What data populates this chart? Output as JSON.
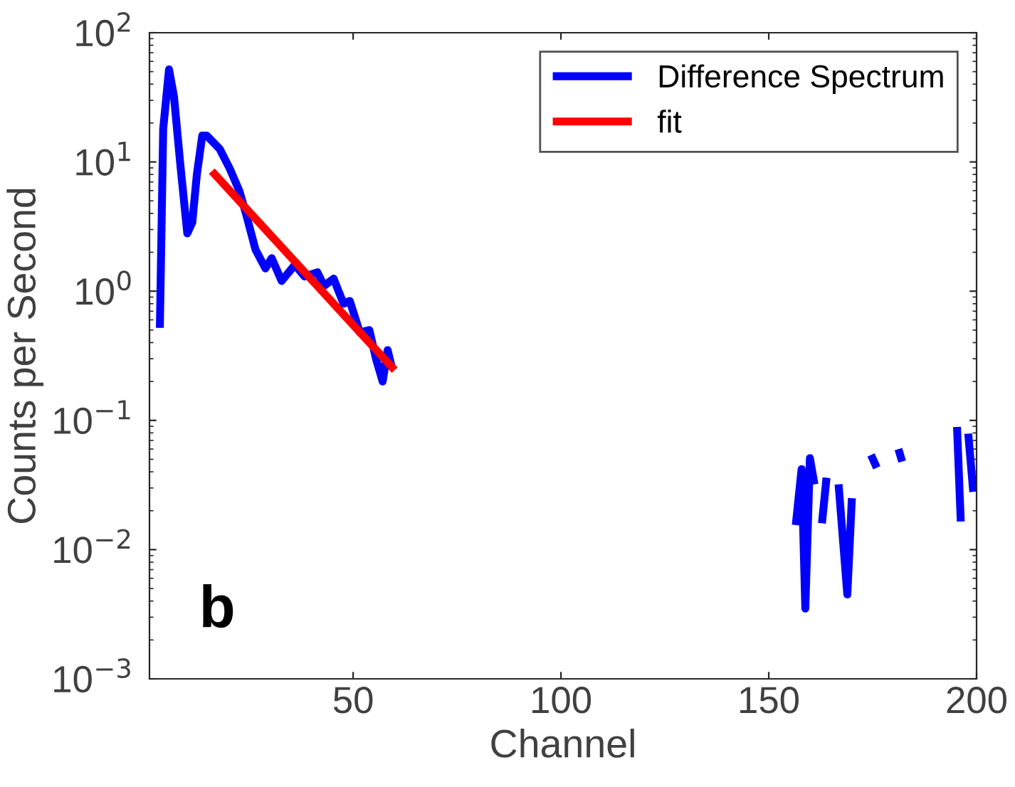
{
  "chart_data": {
    "type": "line",
    "xlabel": "Channel",
    "ylabel": "Counts per Second",
    "log": "y",
    "grid": false,
    "legend": "top right",
    "xlim": [
      1,
      200
    ],
    "xticks": [
      50,
      100,
      150,
      200
    ],
    "ylim": [
      0.001,
      100
    ],
    "yticks": [
      {
        "value": 0.001,
        "label": "10$^{−3}$"
      },
      {
        "value": 0.01,
        "label": "10$^{−2}$"
      },
      {
        "value": 0.1,
        "label": "10$^{−1}$"
      },
      {
        "value": 1,
        "label": "10$^{0}$"
      },
      {
        "value": 10,
        "label": "10$^{1}$"
      },
      {
        "value": 100,
        "label": "10$^{2}$"
      }
    ],
    "annotations": [
      "b"
    ],
    "series": [
      {
        "name": "Difference Spectrum",
        "color": "#0000ff",
        "x": [
          3.5,
          4.3,
          5.7,
          6.9,
          8.5,
          10.1,
          11.3,
          12.4,
          13.7,
          14.8,
          17.9,
          20.3,
          22.6,
          24.2,
          26.5,
          28.9,
          30.4,
          32.8,
          36,
          38.3,
          41.4,
          43,
          45.3,
          47.7,
          49.2,
          51.6,
          53.9,
          55.5,
          57.1,
          58.3,
          59.4,
          100,
          156.5,
          157.9,
          158.8,
          159.9,
          161,
          162,
          162.8,
          163.9,
          165,
          166.8,
          168.9,
          170,
          172,
          174.6,
          176,
          178,
          181.2,
          182.1,
          190,
          195.3,
          196.2,
          197,
          198,
          199.2
        ],
        "values": [
          0.52,
          18,
          52,
          32,
          9,
          2.8,
          3.4,
          8,
          16,
          16,
          12.6,
          8.9,
          6,
          4,
          2.1,
          1.5,
          1.8,
          1.2,
          1.6,
          1.3,
          1.4,
          1.1,
          1.25,
          0.8,
          0.84,
          0.48,
          0.5,
          0.3,
          0.2,
          0.35,
          0.25,
          null,
          0.0155,
          0.042,
          0.0035,
          0.051,
          0.032,
          null,
          0.016,
          0.036,
          null,
          0.032,
          0.0045,
          0.025,
          null,
          0.054,
          0.043,
          null,
          0.06,
          0.048,
          null,
          0.089,
          0.0165,
          null,
          0.079,
          0.028
        ]
      },
      {
        "name": "fit",
        "color": "#ff0000",
        "x": [
          16,
          60
        ],
        "values": [
          8.5,
          0.245
        ]
      }
    ]
  }
}
